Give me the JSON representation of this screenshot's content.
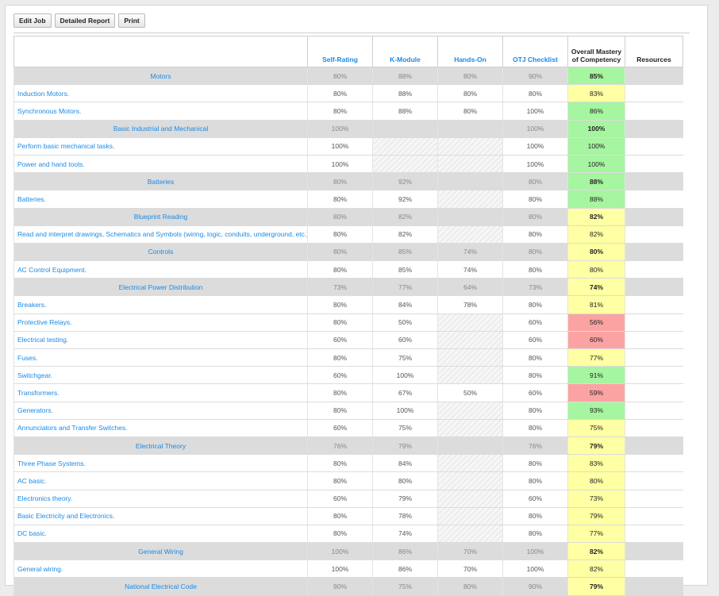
{
  "toolbar": {
    "edit_job": "Edit Job",
    "detailed_report": "Detailed Report",
    "print": "Print"
  },
  "columns": {
    "self_rating": "Self-Rating",
    "k_module": "K-Module",
    "hands_on": "Hands-On",
    "otj_checklist": "OTJ Checklist",
    "overall_line1": "Overall Mastery",
    "overall_line2": "of Competency",
    "resources": "Resources"
  },
  "colors": {
    "green": "#a6f5a0",
    "yellow": "#ffffa3",
    "red": "#fba3a3",
    "link": "#1a8ae6"
  },
  "rows": [
    {
      "type": "category",
      "name": "Motors",
      "self": "80%",
      "k": "88%",
      "hands": "80%",
      "otj": "90%",
      "overall": "85%",
      "level": "green"
    },
    {
      "type": "item",
      "name": "Induction Motors.",
      "self": "80%",
      "k": "88%",
      "hands": "80%",
      "otj": "80%",
      "overall": "83%",
      "level": "yellow"
    },
    {
      "type": "item",
      "name": "Synchronous Motors.",
      "self": "80%",
      "k": "88%",
      "hands": "80%",
      "otj": "100%",
      "overall": "86%",
      "level": "green"
    },
    {
      "type": "category",
      "name": "Basic Industrial and Mechanical",
      "self": "100%",
      "k": "",
      "hands": "",
      "otj": "100%",
      "overall": "100%",
      "level": "green"
    },
    {
      "type": "item",
      "name": "Perform basic mechanical tasks.",
      "self": "100%",
      "k": null,
      "hands": null,
      "otj": "100%",
      "overall": "100%",
      "level": "green"
    },
    {
      "type": "item",
      "name": "Power and hand tools.",
      "self": "100%",
      "k": null,
      "hands": null,
      "otj": "100%",
      "overall": "100%",
      "level": "green"
    },
    {
      "type": "category",
      "name": "Batteries",
      "self": "80%",
      "k": "92%",
      "hands": "",
      "otj": "80%",
      "overall": "88%",
      "level": "green"
    },
    {
      "type": "item",
      "name": "Batteries.",
      "self": "80%",
      "k": "92%",
      "hands": null,
      "otj": "80%",
      "overall": "88%",
      "level": "green"
    },
    {
      "type": "category",
      "name": "Blueprint Reading",
      "self": "80%",
      "k": "82%",
      "hands": "",
      "otj": "80%",
      "overall": "82%",
      "level": "yellow"
    },
    {
      "type": "item",
      "name": "Read and interpret drawings, Schematics and Symbols (wiring, logic, conduits, underground, etc.).",
      "self": "80%",
      "k": "82%",
      "hands": null,
      "otj": "80%",
      "overall": "82%",
      "level": "yellow"
    },
    {
      "type": "category",
      "name": "Controls",
      "self": "80%",
      "k": "85%",
      "hands": "74%",
      "otj": "80%",
      "overall": "80%",
      "level": "yellow"
    },
    {
      "type": "item",
      "name": "AC Control Equipment.",
      "self": "80%",
      "k": "85%",
      "hands": "74%",
      "otj": "80%",
      "overall": "80%",
      "level": "yellow"
    },
    {
      "type": "category",
      "name": "Electrical Power Distribution",
      "self": "73%",
      "k": "77%",
      "hands": "64%",
      "otj": "73%",
      "overall": "74%",
      "level": "yellow"
    },
    {
      "type": "item",
      "name": "Breakers.",
      "self": "80%",
      "k": "84%",
      "hands": "78%",
      "otj": "80%",
      "overall": "81%",
      "level": "yellow"
    },
    {
      "type": "item",
      "name": "Protective Relays.",
      "self": "80%",
      "k": "50%",
      "hands": null,
      "otj": "60%",
      "overall": "56%",
      "level": "red"
    },
    {
      "type": "item",
      "name": "Electrical testing.",
      "self": "60%",
      "k": "60%",
      "hands": null,
      "otj": "60%",
      "overall": "60%",
      "level": "red"
    },
    {
      "type": "item",
      "name": "Fuses.",
      "self": "80%",
      "k": "75%",
      "hands": null,
      "otj": "80%",
      "overall": "77%",
      "level": "yellow"
    },
    {
      "type": "item",
      "name": "Switchgear.",
      "self": "60%",
      "k": "100%",
      "hands": null,
      "otj": "80%",
      "overall": "91%",
      "level": "green"
    },
    {
      "type": "item",
      "name": "Transformers.",
      "self": "80%",
      "k": "67%",
      "hands": "50%",
      "otj": "60%",
      "overall": "59%",
      "level": "red"
    },
    {
      "type": "item",
      "name": "Generators.",
      "self": "80%",
      "k": "100%",
      "hands": null,
      "otj": "80%",
      "overall": "93%",
      "level": "green"
    },
    {
      "type": "item",
      "name": "Annunciators and Transfer Switches.",
      "self": "60%",
      "k": "75%",
      "hands": null,
      "otj": "80%",
      "overall": "75%",
      "level": "yellow"
    },
    {
      "type": "category",
      "name": "Electrical Theory",
      "self": "76%",
      "k": "79%",
      "hands": "",
      "otj": "76%",
      "overall": "79%",
      "level": "yellow"
    },
    {
      "type": "item",
      "name": "Three Phase Systems.",
      "self": "80%",
      "k": "84%",
      "hands": null,
      "otj": "80%",
      "overall": "83%",
      "level": "yellow"
    },
    {
      "type": "item",
      "name": "AC basic.",
      "self": "80%",
      "k": "80%",
      "hands": null,
      "otj": "80%",
      "overall": "80%",
      "level": "yellow"
    },
    {
      "type": "item",
      "name": "Electronics theory.",
      "self": "60%",
      "k": "79%",
      "hands": null,
      "otj": "60%",
      "overall": "73%",
      "level": "yellow"
    },
    {
      "type": "item",
      "name": "Basic Electricity and Electronics.",
      "self": "80%",
      "k": "78%",
      "hands": null,
      "otj": "80%",
      "overall": "79%",
      "level": "yellow"
    },
    {
      "type": "item",
      "name": "DC basic.",
      "self": "80%",
      "k": "74%",
      "hands": null,
      "otj": "80%",
      "overall": "77%",
      "level": "yellow"
    },
    {
      "type": "category",
      "name": "General Wiring",
      "self": "100%",
      "k": "86%",
      "hands": "70%",
      "otj": "100%",
      "overall": "82%",
      "level": "yellow"
    },
    {
      "type": "item",
      "name": "General wiring.",
      "self": "100%",
      "k": "86%",
      "hands": "70%",
      "otj": "100%",
      "overall": "82%",
      "level": "yellow"
    },
    {
      "type": "category",
      "name": "National Electrical Code",
      "self": "90%",
      "k": "75%",
      "hands": "80%",
      "otj": "90%",
      "overall": "79%",
      "level": "yellow"
    }
  ]
}
